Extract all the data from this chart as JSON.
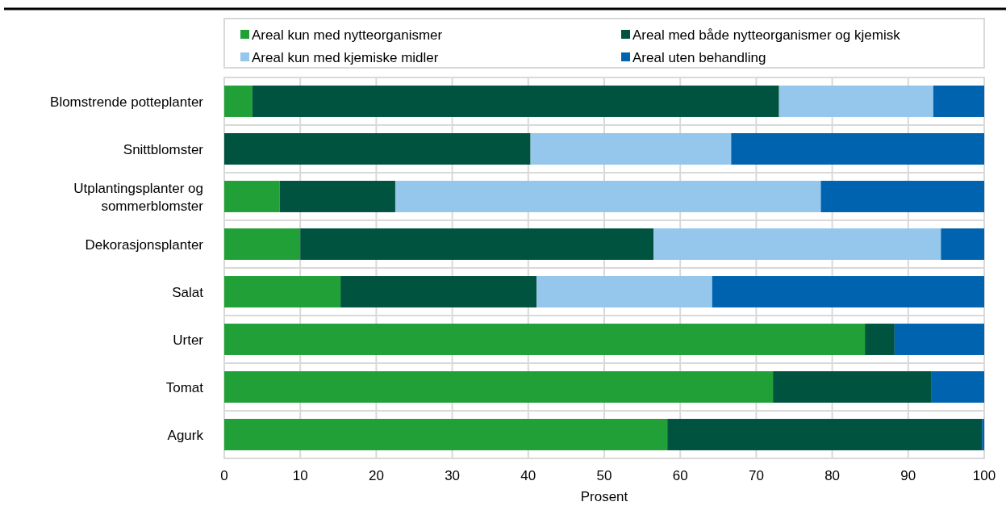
{
  "chart_data": {
    "type": "bar",
    "orientation": "horizontal",
    "stacked": true,
    "xlabel": "Prosent",
    "categories": [
      "Blomstrende potteplanter",
      "Snittblomster",
      "Utplantingsplanter og sommerblomster",
      "Dekorasjonsplanter",
      "Salat",
      "Urter",
      "Tomat",
      "Agurk"
    ],
    "series": [
      {
        "name": "Areal kun med nytteorganismer",
        "color": "#21a038",
        "values": [
          3.7,
          0,
          7.3,
          10.0,
          15.3,
          84.3,
          72.2,
          58.3
        ]
      },
      {
        "name": "Areal med både nytteorganismer og kjemisk",
        "color": "#00533f",
        "values": [
          69.3,
          40.3,
          15.2,
          46.5,
          25.8,
          3.9,
          20.8,
          41.4
        ]
      },
      {
        "name": "Areal kun med kjemiske midler",
        "color": "#95c6ec",
        "values": [
          20.3,
          26.4,
          56.0,
          37.8,
          23.1,
          0,
          0,
          0
        ]
      },
      {
        "name": "Areal uten behandling",
        "color": "#0063af",
        "values": [
          6.7,
          33.3,
          21.5,
          5.7,
          35.8,
          11.8,
          7.0,
          0.3
        ]
      }
    ],
    "xlim": [
      0,
      100
    ],
    "xticks": [
      0,
      10,
      20,
      30,
      40,
      50,
      60,
      70,
      80,
      90,
      100
    ],
    "grid": true,
    "legend": "top"
  }
}
